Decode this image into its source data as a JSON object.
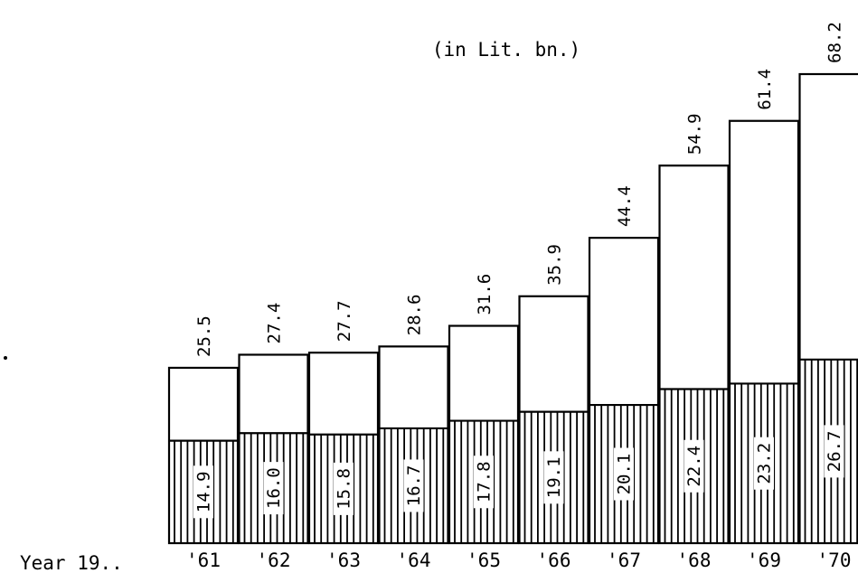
{
  "chart_data": {
    "type": "bar",
    "subtitle": "(in Lit. bn.)",
    "xlabel": "Year 19..",
    "categories": [
      "'61",
      "'62",
      "'63",
      "'64",
      "'65",
      "'66",
      "'67",
      "'68",
      "'69",
      "'70"
    ],
    "series": [
      {
        "style": "vertical-hatched",
        "values": [
          14.9,
          16.0,
          15.8,
          16.7,
          17.8,
          19.1,
          20.1,
          22.4,
          23.2,
          26.7
        ]
      },
      {
        "style": "plain",
        "values": [
          25.5,
          27.4,
          27.7,
          28.6,
          31.6,
          35.9,
          44.4,
          54.9,
          61.4,
          68.2
        ]
      }
    ],
    "total_labels": [
      "25.5",
      "27.4",
      "27.7",
      "28.6",
      "31.6",
      "35.9",
      "44.4",
      "54.9",
      "61.4",
      "68.2"
    ],
    "part_labels": [
      "14.9",
      "16.0",
      "15.8",
      "16.7",
      "17.8",
      "19.1",
      "20.1",
      "22.4",
      "23.2",
      "26.7"
    ],
    "ylim": [
      0,
      68.2
    ],
    "grid": false,
    "legend": "none",
    "colors": {
      "ink": "#000000",
      "background": "#ffffff"
    }
  }
}
